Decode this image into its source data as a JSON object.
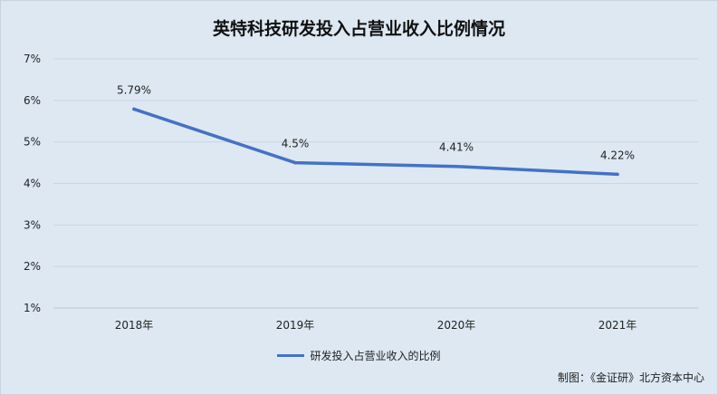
{
  "title": "英特科技研发投入占营业收入比例情况",
  "chart_data": {
    "type": "line",
    "categories": [
      "2018年",
      "2019年",
      "2020年",
      "2021年"
    ],
    "series": [
      {
        "name": "研发投入占营业收入的比例",
        "values": [
          5.79,
          4.5,
          4.41,
          4.22
        ],
        "color": "#4472c4"
      }
    ],
    "data_labels": [
      "5.79%",
      "4.5%",
      "4.41%",
      "4.22%"
    ],
    "y_ticks": [
      "1%",
      "2%",
      "3%",
      "4%",
      "5%",
      "6%",
      "7%"
    ],
    "ylim": [
      1,
      7
    ],
    "grid": true,
    "legend_position": "bottom"
  },
  "credit": "制图：《金证研》北方资本中心"
}
